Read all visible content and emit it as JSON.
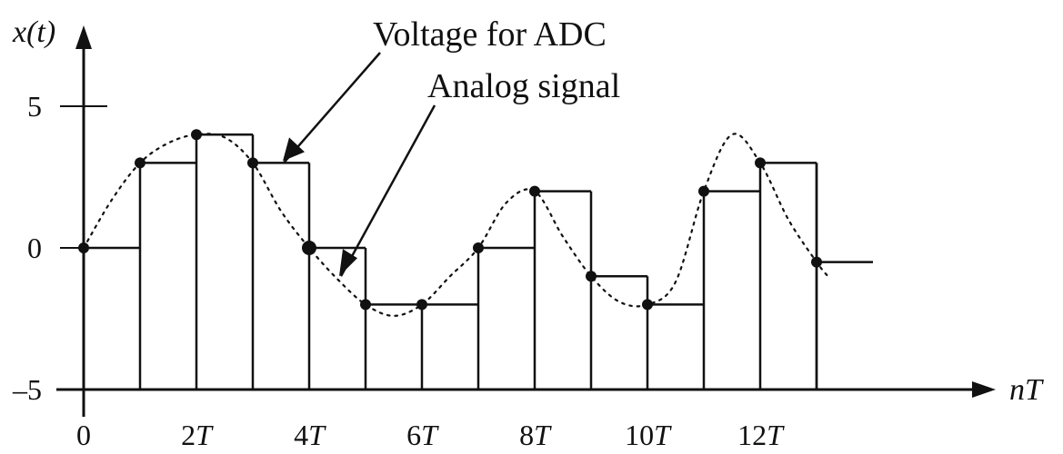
{
  "chart_data": {
    "type": "line",
    "title": "",
    "xlabel": "nT",
    "ylabel": "x(t)",
    "x_units_label": "T",
    "xlim": [
      0,
      14.5
    ],
    "ylim": [
      -5,
      5
    ],
    "x_ticks": [
      {
        "value": 0,
        "num": "0",
        "unit": ""
      },
      {
        "value": 2,
        "num": "2",
        "unit": "T"
      },
      {
        "value": 4,
        "num": "4",
        "unit": "T"
      },
      {
        "value": 6,
        "num": "6",
        "unit": "T"
      },
      {
        "value": 8,
        "num": "8",
        "unit": "T"
      },
      {
        "value": 10,
        "num": "10",
        "unit": "T"
      },
      {
        "value": 12,
        "num": "12",
        "unit": "T"
      }
    ],
    "y_ticks": [
      {
        "value": 5,
        "label": "5"
      },
      {
        "value": 0,
        "label": "0"
      },
      {
        "value": -5,
        "label": "–5"
      }
    ],
    "sample_times": [
      0,
      1,
      2,
      3,
      4,
      5,
      6,
      7,
      8,
      9,
      10,
      11,
      12,
      13
    ],
    "sample_values": [
      0,
      3,
      4,
      3,
      0,
      -2,
      -2,
      0,
      2,
      -1,
      -2,
      2,
      3,
      -0.5
    ],
    "series": [
      {
        "name": "Voltage for ADC",
        "style": "zero-order-hold",
        "x": [
          0,
          1,
          2,
          3,
          4,
          5,
          6,
          7,
          8,
          9,
          10,
          11,
          12,
          13,
          14
        ],
        "values": [
          0,
          3,
          4,
          3,
          0,
          -2,
          -2,
          0,
          2,
          -1,
          -2,
          2,
          3,
          -0.5,
          -0.5
        ]
      },
      {
        "name": "Analog signal",
        "style": "dotted",
        "x": [
          0,
          0.5,
          1,
          1.5,
          2,
          2.5,
          3,
          3.5,
          4,
          4.5,
          5,
          5.5,
          6,
          6.5,
          7,
          7.5,
          8,
          8.5,
          9,
          9.5,
          10,
          10.5,
          11,
          11.5,
          12,
          12.5,
          13,
          13.2
        ],
        "values": [
          0,
          1.7,
          3,
          3.7,
          4,
          3.9,
          3,
          1.3,
          0,
          -1.1,
          -2,
          -2.4,
          -2,
          -1,
          0,
          1.6,
          2,
          0.4,
          -1,
          -1.9,
          -2,
          -1.2,
          2,
          4,
          3,
          1,
          -0.5,
          -1
        ]
      }
    ],
    "annotations": [
      {
        "text": "Voltage for ADC",
        "target": [
          3.5,
          3
        ]
      },
      {
        "text": "Analog signal",
        "target": [
          4.5,
          -1
        ]
      }
    ],
    "grid": false,
    "legend": "none"
  }
}
